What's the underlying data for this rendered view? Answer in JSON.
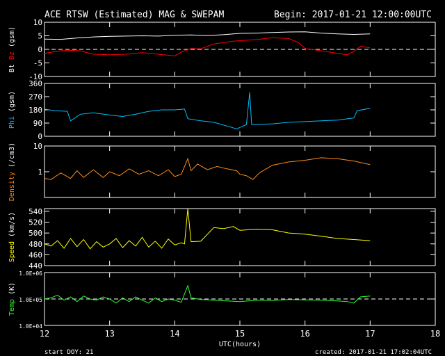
{
  "header": {
    "title": "ACE RTSW (Estimated) MAG & SWEPAM",
    "begin": "Begin: 2017-01-21 12:00:00UTC"
  },
  "footer": {
    "start_doy": "start DOY:  21",
    "created": "created: 2017-01-21 17:02:04UTC"
  },
  "chart_data": {
    "type": "line",
    "x_axis": {
      "label": "UTC(hours)",
      "range": [
        12,
        18
      ],
      "ticks": [
        12,
        13,
        14,
        15,
        16,
        17,
        18
      ]
    },
    "panels": [
      {
        "id": "mag",
        "ylabel_parts": [
          {
            "text": "Bt",
            "color": "#ffffff"
          },
          {
            "text": "Bz",
            "color": "#ff0000"
          },
          {
            "text": "(gsm)",
            "color": "#ffffff"
          }
        ],
        "ylim": [
          -10,
          10
        ],
        "yscale": "linear",
        "yticks": [
          -10,
          -5,
          0,
          5,
          10
        ],
        "ytick_labels": [
          "-10",
          "-5",
          "0",
          "5",
          "10"
        ],
        "reference_line": 0,
        "series": [
          {
            "name": "Bt",
            "color": "#ffffff",
            "x": [
              12.0,
              12.25,
              12.5,
              12.75,
              13.0,
              13.25,
              13.5,
              13.75,
              14.0,
              14.25,
              14.5,
              14.75,
              15.0,
              15.25,
              15.5,
              15.75,
              16.0,
              16.25,
              16.5,
              16.75,
              17.0
            ],
            "y": [
              3.8,
              3.7,
              4.2,
              4.6,
              4.8,
              4.9,
              5.0,
              4.9,
              5.2,
              5.3,
              5.1,
              5.4,
              5.9,
              6.0,
              6.2,
              6.4,
              6.5,
              6.0,
              5.7,
              5.5,
              5.7
            ]
          },
          {
            "name": "Bz",
            "color": "#ff0000",
            "x": [
              12.0,
              12.25,
              12.5,
              12.75,
              13.0,
              13.25,
              13.5,
              13.75,
              14.0,
              14.1,
              14.25,
              14.4,
              14.6,
              14.75,
              14.9,
              15.0,
              15.25,
              15.5,
              15.75,
              15.9,
              16.0,
              16.25,
              16.5,
              16.65,
              16.75,
              16.85,
              17.0
            ],
            "y": [
              -1.5,
              -0.5,
              -0.3,
              -1.8,
              -2.0,
              -1.8,
              -1.2,
              -1.8,
              -2.4,
              -1.0,
              0.3,
              0.2,
              2.0,
              2.5,
              3.0,
              3.2,
              3.6,
              4.3,
              4.0,
              2.5,
              0.3,
              -0.5,
              -1.5,
              -2.0,
              -0.8,
              1.2,
              0.5
            ]
          }
        ]
      },
      {
        "id": "phi",
        "ylabel_parts": [
          {
            "text": "Phi",
            "color": "#00bfff"
          },
          {
            "text": "(gsm)",
            "color": "#ffffff"
          }
        ],
        "ylim": [
          0,
          360
        ],
        "yscale": "linear",
        "yticks": [
          0,
          90,
          180,
          270,
          360
        ],
        "ytick_labels": [
          "0",
          "90",
          "180",
          "270",
          "360"
        ],
        "series": [
          {
            "name": "Phi",
            "color": "#00bfff",
            "x": [
              12.0,
              12.15,
              12.35,
              12.4,
              12.55,
              12.75,
              13.0,
              13.2,
              13.4,
              13.6,
              13.8,
              14.0,
              14.15,
              14.2,
              14.4,
              14.6,
              14.8,
              14.95,
              15.1,
              15.15,
              15.18,
              15.25,
              15.5,
              15.75,
              16.0,
              16.25,
              16.5,
              16.75,
              16.8,
              17.0
            ],
            "y": [
              185,
              175,
              170,
              105,
              150,
              160,
              145,
              135,
              150,
              170,
              180,
              180,
              185,
              120,
              105,
              95,
              70,
              50,
              80,
              300,
              80,
              80,
              85,
              95,
              100,
              105,
              110,
              125,
              175,
              190
            ]
          }
        ]
      },
      {
        "id": "density",
        "ylabel_parts": [
          {
            "text": "Density",
            "color": "#ff8c1a"
          },
          {
            "text": "(/cm3)",
            "color": "#ffffff"
          }
        ],
        "ylim": [
          0.1,
          10
        ],
        "yscale": "log",
        "yticks": [
          0.1,
          1,
          10
        ],
        "ytick_labels": [
          "",
          "1",
          "10"
        ],
        "series": [
          {
            "name": "Density",
            "color": "#ff8c1a",
            "x": [
              12.0,
              12.1,
              12.25,
              12.4,
              12.5,
              12.6,
              12.75,
              12.9,
              13.0,
              13.15,
              13.3,
              13.45,
              13.6,
              13.75,
              13.9,
              14.0,
              14.1,
              14.2,
              14.25,
              14.35,
              14.5,
              14.65,
              14.8,
              14.95,
              15.0,
              15.1,
              15.2,
              15.3,
              15.5,
              15.75,
              16.0,
              16.25,
              16.5,
              16.75,
              17.0
            ],
            "y": [
              0.55,
              0.5,
              0.9,
              0.55,
              1.1,
              0.6,
              1.2,
              0.6,
              1.0,
              0.7,
              1.3,
              0.8,
              1.1,
              0.7,
              1.2,
              0.65,
              0.8,
              3.2,
              1.1,
              2.0,
              1.2,
              1.6,
              1.3,
              1.1,
              0.8,
              0.7,
              0.5,
              0.9,
              1.8,
              2.4,
              2.8,
              3.5,
              3.2,
              2.6,
              1.9
            ]
          }
        ]
      },
      {
        "id": "speed",
        "ylabel_parts": [
          {
            "text": "Speed",
            "color": "#ffff00"
          },
          {
            "text": "(km/s)",
            "color": "#ffffff"
          }
        ],
        "ylim": [
          440,
          545
        ],
        "yscale": "linear",
        "yticks": [
          440,
          460,
          480,
          500,
          520,
          540
        ],
        "ytick_labels": [
          "440",
          "460",
          "480",
          "500",
          "520",
          "540"
        ],
        "series": [
          {
            "name": "Speed",
            "color": "#ffff00",
            "x": [
              12.0,
              12.1,
              12.2,
              12.3,
              12.4,
              12.5,
              12.6,
              12.7,
              12.8,
              12.9,
              13.0,
              13.1,
              13.2,
              13.3,
              13.4,
              13.5,
              13.6,
              13.7,
              13.8,
              13.9,
              14.0,
              14.1,
              14.15,
              14.2,
              14.25,
              14.4,
              14.6,
              14.75,
              14.9,
              15.0,
              15.25,
              15.5,
              15.75,
              16.0,
              16.25,
              16.5,
              16.75,
              17.0
            ],
            "y": [
              480,
              476,
              486,
              472,
              490,
              475,
              488,
              471,
              484,
              474,
              480,
              490,
              473,
              486,
              476,
              492,
              474,
              485,
              472,
              489,
              478,
              482,
              480,
              545,
              484,
              485,
              510,
              508,
              512,
              505,
              507,
              506,
              500,
              498,
              494,
              490,
              488,
              486
            ]
          }
        ]
      },
      {
        "id": "temp",
        "ylabel_parts": [
          {
            "text": "Temp",
            "color": "#33ff33"
          },
          {
            "text": "(K)",
            "color": "#ffffff"
          }
        ],
        "ylim": [
          10000,
          1000000
        ],
        "yscale": "log",
        "yticks": [
          10000,
          100000,
          1000000
        ],
        "ytick_labels": [
          "1.0E+04",
          "1.0E+05",
          "1.0E+06"
        ],
        "reference_line": 100000,
        "series": [
          {
            "name": "Temp",
            "color": "#33ff33",
            "x": [
              12.0,
              12.1,
              12.2,
              12.3,
              12.4,
              12.5,
              12.6,
              12.7,
              12.8,
              12.9,
              13.0,
              13.1,
              13.2,
              13.3,
              13.4,
              13.5,
              13.6,
              13.7,
              13.8,
              13.9,
              14.0,
              14.1,
              14.2,
              14.25,
              14.4,
              14.6,
              14.8,
              15.0,
              15.25,
              15.5,
              15.75,
              16.0,
              16.25,
              16.5,
              16.65,
              16.75,
              16.85,
              17.0
            ],
            "y": [
              100000,
              110000,
              140000,
              90000,
              120000,
              80000,
              130000,
              100000,
              90000,
              120000,
              100000,
              70000,
              110000,
              80000,
              120000,
              90000,
              70000,
              110000,
              80000,
              100000,
              90000,
              75000,
              320000,
              110000,
              95000,
              90000,
              85000,
              80000,
              90000,
              88000,
              95000,
              92000,
              90000,
              85000,
              80000,
              70000,
              120000,
              130000
            ]
          }
        ]
      }
    ]
  }
}
